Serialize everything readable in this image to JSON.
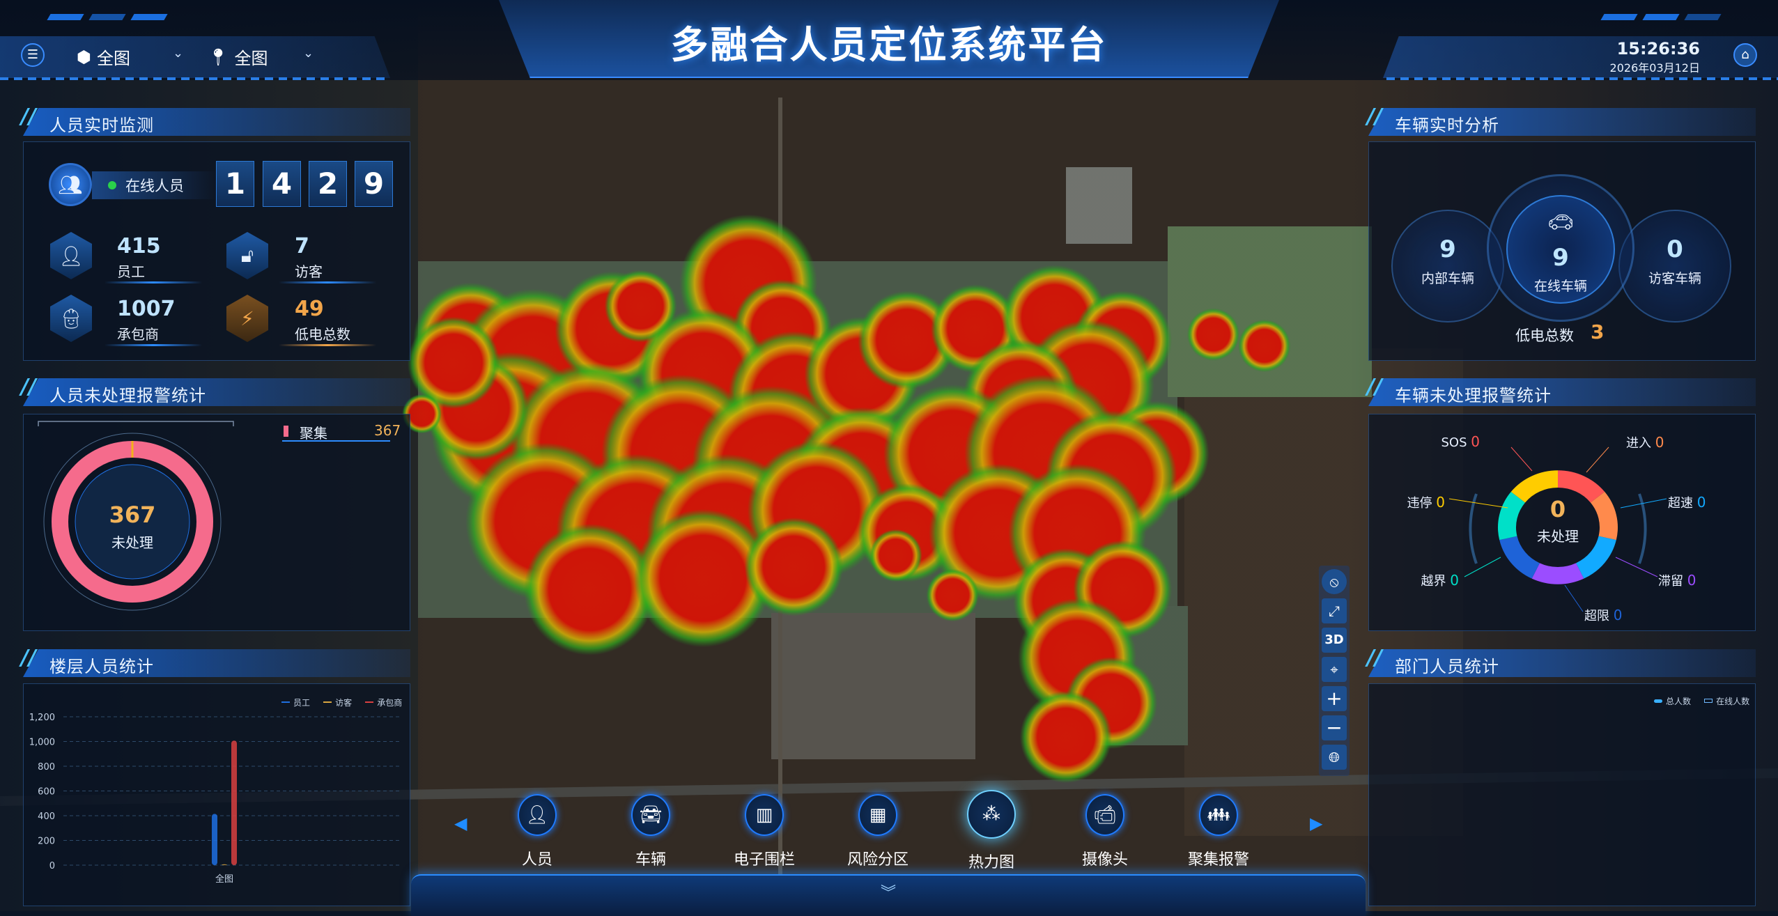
{
  "header": {
    "title": "多融合人员定位系统平台",
    "time": "15:26:36",
    "date": "2026年03月12日",
    "selectors": [
      {
        "icon": "cube-icon",
        "value": "全图"
      },
      {
        "icon": "location-pin-icon",
        "value": "全图"
      }
    ]
  },
  "personnel_monitor": {
    "title": "人员实时监测",
    "online_label": "在线人员",
    "online_digits": [
      "1",
      "4",
      "2",
      "9"
    ],
    "stats": [
      {
        "value": "415",
        "label": "员工",
        "icon": "person-icon"
      },
      {
        "value": "7",
        "label": "访客",
        "icon": "visitor-lock-icon"
      },
      {
        "value": "1007",
        "label": "承包商",
        "icon": "helmet-worker-icon"
      },
      {
        "value": "49",
        "label": "低电总数",
        "icon": "low-battery-icon"
      }
    ]
  },
  "personnel_alarm": {
    "title": "人员未处理报警统计",
    "total": "367",
    "total_label": "未处理",
    "legend": [
      {
        "label": "聚集",
        "value": "367",
        "color": "#f56b8c"
      }
    ]
  },
  "floor_stats": {
    "title": "楼层人员统计"
  },
  "vehicle_analysis": {
    "title": "车辆实时分析",
    "internal": {
      "value": "9",
      "label": "内部车辆"
    },
    "online": {
      "value": "9",
      "label": "在线车辆"
    },
    "visitor": {
      "value": "0",
      "label": "访客车辆"
    },
    "low_battery_label": "低电总数",
    "low_battery_value": "3"
  },
  "vehicle_alarm": {
    "title": "车辆未处理报警统计",
    "total": "0",
    "total_label": "未处理",
    "items": [
      {
        "label": "SOS",
        "value": "0",
        "color": "#ff5555"
      },
      {
        "label": "进入",
        "value": "0",
        "color": "#ff8a4c"
      },
      {
        "label": "超速",
        "value": "0",
        "color": "#12aaff"
      },
      {
        "label": "滞留",
        "value": "0",
        "color": "#9b4dff"
      },
      {
        "label": "超限",
        "value": "0",
        "color": "#1e63d8"
      },
      {
        "label": "越界",
        "value": "0",
        "color": "#00e0c8"
      },
      {
        "label": "违停",
        "value": "0",
        "color": "#ffcc00"
      }
    ]
  },
  "dept_stats": {
    "title": "部门人员统计",
    "legend": [
      "总人数",
      "在线人数"
    ]
  },
  "toolbar": {
    "items": [
      {
        "label": "人员",
        "icon": "person-icon"
      },
      {
        "label": "车辆",
        "icon": "car-icon"
      },
      {
        "label": "电子围栏",
        "icon": "fence-icon"
      },
      {
        "label": "风险分区",
        "icon": "risk-zone-icon"
      },
      {
        "label": "热力图",
        "icon": "heatmap-icon",
        "active": true
      },
      {
        "label": "摄像头",
        "icon": "camera-icon"
      },
      {
        "label": "聚集报警",
        "icon": "crowd-icon"
      }
    ]
  },
  "map_controls": [
    "compass",
    "fullscreen",
    "3D",
    "locate",
    "zoom-in",
    "zoom-out",
    "globe"
  ],
  "chart_data": {
    "type": "bar",
    "categories": [
      "全图"
    ],
    "series": [
      {
        "name": "员工",
        "values": [
          415
        ],
        "color": "#1f6fe0"
      },
      {
        "name": "访客",
        "values": [
          7
        ],
        "color": "#d9a640"
      },
      {
        "name": "承包商",
        "values": [
          1007
        ],
        "color": "#d94040"
      }
    ],
    "ylim": [
      0,
      1200
    ],
    "yticks": [
      "0",
      "200",
      "400",
      "600",
      "800",
      "1,000",
      "1,200"
    ],
    "grid": true,
    "legend": "top-right"
  }
}
